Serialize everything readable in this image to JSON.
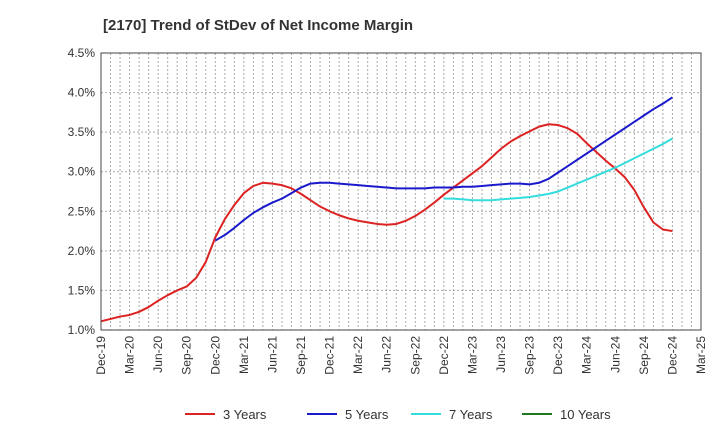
{
  "chart_data": {
    "type": "line",
    "title": "[2170]  Trend of StDev of Net Income Margin",
    "xlabel": "",
    "ylabel": "",
    "x_ticks": [
      "Dec-19",
      "Mar-20",
      "Jun-20",
      "Sep-20",
      "Dec-20",
      "Mar-21",
      "Jun-21",
      "Sep-21",
      "Dec-21",
      "Mar-22",
      "Jun-22",
      "Sep-22",
      "Dec-22",
      "Mar-23",
      "Jun-23",
      "Sep-23",
      "Dec-23",
      "Mar-24",
      "Jun-24",
      "Sep-24",
      "Dec-24",
      "Mar-25"
    ],
    "y_ticks": [
      "1.0%",
      "1.5%",
      "2.0%",
      "2.5%",
      "3.0%",
      "3.5%",
      "4.0%",
      "4.5%"
    ],
    "ylim": [
      1.0,
      4.5
    ],
    "grid": true,
    "legend_position": "bottom",
    "series": [
      {
        "name": "3 Years",
        "color": "#dd2222",
        "x": [
          "Dec-19",
          "Jan-20",
          "Feb-20",
          "Mar-20",
          "Apr-20",
          "May-20",
          "Jun-20",
          "Jul-20",
          "Aug-20",
          "Sep-20",
          "Oct-20",
          "Nov-20",
          "Dec-20",
          "Jan-21",
          "Feb-21",
          "Mar-21",
          "Apr-21",
          "May-21",
          "Jun-21",
          "Jul-21",
          "Aug-21",
          "Sep-21",
          "Oct-21",
          "Nov-21",
          "Dec-21",
          "Jan-22",
          "Feb-22",
          "Mar-22",
          "Apr-22",
          "May-22",
          "Jun-22",
          "Jul-22",
          "Aug-22",
          "Sep-22",
          "Oct-22",
          "Nov-22",
          "Dec-22",
          "Jan-23",
          "Feb-23",
          "Mar-23",
          "Apr-23",
          "May-23",
          "Jun-23",
          "Jul-23",
          "Aug-23",
          "Sep-23",
          "Oct-23",
          "Nov-23",
          "Dec-23",
          "Jan-24",
          "Feb-24",
          "Mar-24",
          "Apr-24",
          "May-24",
          "Jun-24",
          "Jul-24",
          "Aug-24",
          "Sep-24",
          "Oct-24",
          "Nov-24",
          "Dec-24"
        ],
        "values": [
          1.11,
          1.14,
          1.17,
          1.19,
          1.23,
          1.29,
          1.37,
          1.44,
          1.5,
          1.55,
          1.66,
          1.86,
          2.17,
          2.4,
          2.58,
          2.73,
          2.82,
          2.86,
          2.85,
          2.83,
          2.79,
          2.72,
          2.64,
          2.56,
          2.5,
          2.45,
          2.41,
          2.38,
          2.36,
          2.34,
          2.33,
          2.34,
          2.38,
          2.44,
          2.52,
          2.61,
          2.71,
          2.8,
          2.89,
          2.98,
          3.07,
          3.18,
          3.29,
          3.38,
          3.45,
          3.51,
          3.57,
          3.6,
          3.59,
          3.55,
          3.48,
          3.36,
          3.25,
          3.14,
          3.04,
          2.93,
          2.77,
          2.55,
          2.36,
          2.27,
          2.25
        ]
      },
      {
        "name": "5 Years",
        "color": "#1a1acc",
        "x": [
          "Dec-20",
          "Jan-21",
          "Feb-21",
          "Mar-21",
          "Apr-21",
          "May-21",
          "Jun-21",
          "Jul-21",
          "Aug-21",
          "Sep-21",
          "Oct-21",
          "Nov-21",
          "Dec-21",
          "Jan-22",
          "Feb-22",
          "Mar-22",
          "Apr-22",
          "May-22",
          "Jun-22",
          "Jul-22",
          "Aug-22",
          "Sep-22",
          "Oct-22",
          "Nov-22",
          "Dec-22",
          "Jan-23",
          "Feb-23",
          "Mar-23",
          "Apr-23",
          "May-23",
          "Jun-23",
          "Jul-23",
          "Aug-23",
          "Sep-23",
          "Oct-23",
          "Nov-23",
          "Dec-23",
          "Jan-24",
          "Feb-24",
          "Mar-24",
          "Apr-24",
          "May-24",
          "Jun-24",
          "Jul-24",
          "Aug-24",
          "Sep-24",
          "Oct-24",
          "Nov-24",
          "Dec-24"
        ],
        "values": [
          2.13,
          2.2,
          2.29,
          2.39,
          2.48,
          2.55,
          2.61,
          2.66,
          2.73,
          2.8,
          2.85,
          2.86,
          2.86,
          2.85,
          2.84,
          2.83,
          2.82,
          2.81,
          2.8,
          2.79,
          2.79,
          2.79,
          2.79,
          2.8,
          2.8,
          2.8,
          2.81,
          2.81,
          2.82,
          2.83,
          2.84,
          2.85,
          2.85,
          2.84,
          2.86,
          2.91,
          2.99,
          3.07,
          3.15,
          3.23,
          3.31,
          3.39,
          3.47,
          3.55,
          3.63,
          3.71,
          3.79,
          3.86,
          3.94
        ]
      },
      {
        "name": "7 Years",
        "color": "#33dddd",
        "x": [
          "Dec-22",
          "Jan-23",
          "Feb-23",
          "Mar-23",
          "Apr-23",
          "May-23",
          "Jun-23",
          "Jul-23",
          "Aug-23",
          "Sep-23",
          "Oct-23",
          "Nov-23",
          "Dec-23",
          "Jan-24",
          "Feb-24",
          "Mar-24",
          "Apr-24",
          "May-24",
          "Jun-24",
          "Jul-24",
          "Aug-24",
          "Sep-24",
          "Oct-24",
          "Nov-24",
          "Dec-24"
        ],
        "values": [
          2.66,
          2.66,
          2.65,
          2.64,
          2.64,
          2.64,
          2.65,
          2.66,
          2.67,
          2.68,
          2.7,
          2.72,
          2.75,
          2.8,
          2.85,
          2.9,
          2.95,
          3.0,
          3.05,
          3.11,
          3.17,
          3.23,
          3.29,
          3.35,
          3.42
        ]
      },
      {
        "name": "10 Years",
        "color": "#1f7a1f",
        "x": [],
        "values": []
      }
    ]
  }
}
